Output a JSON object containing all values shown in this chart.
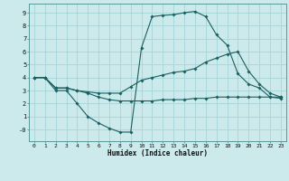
{
  "xlabel": "Humidex (Indice chaleur)",
  "background_color": "#cce9eb",
  "grid_color": "#a8d5d8",
  "line_color": "#1a6060",
  "xlim": [
    -0.5,
    23.5
  ],
  "ylim": [
    -0.9,
    9.7
  ],
  "xticks": [
    0,
    1,
    2,
    3,
    4,
    5,
    6,
    7,
    8,
    9,
    10,
    11,
    12,
    13,
    14,
    15,
    16,
    17,
    18,
    19,
    20,
    21,
    22,
    23
  ],
  "yticks": [
    0,
    1,
    2,
    3,
    4,
    5,
    6,
    7,
    8,
    9
  ],
  "ytick_labels": [
    "-0",
    "1",
    "2",
    "3",
    "4",
    "5",
    "6",
    "7",
    "8",
    "9"
  ],
  "line1_x": [
    0,
    1,
    2,
    3,
    4,
    5,
    6,
    7,
    8,
    9,
    10,
    11,
    12,
    13,
    14,
    15,
    16,
    17,
    18,
    19,
    20,
    21,
    22,
    23
  ],
  "line1_y": [
    4.0,
    4.0,
    3.0,
    3.0,
    2.0,
    1.0,
    0.5,
    0.1,
    -0.2,
    -0.2,
    6.3,
    8.7,
    8.8,
    8.85,
    9.0,
    9.1,
    8.7,
    7.3,
    6.5,
    4.3,
    3.5,
    3.2,
    2.5,
    2.4
  ],
  "line2_x": [
    0,
    1,
    2,
    3,
    4,
    5,
    6,
    7,
    8,
    9,
    10,
    11,
    12,
    13,
    14,
    15,
    16,
    17,
    18,
    19,
    20,
    21,
    22,
    23
  ],
  "line2_y": [
    4.0,
    4.0,
    3.2,
    3.2,
    3.0,
    2.9,
    2.8,
    2.8,
    2.8,
    3.3,
    3.8,
    4.0,
    4.2,
    4.4,
    4.5,
    4.7,
    5.2,
    5.5,
    5.8,
    6.0,
    4.5,
    3.5,
    2.8,
    2.5
  ],
  "line3_x": [
    0,
    1,
    2,
    3,
    4,
    5,
    6,
    7,
    8,
    9,
    10,
    11,
    12,
    13,
    14,
    15,
    16,
    17,
    18,
    19,
    20,
    21,
    22,
    23
  ],
  "line3_y": [
    4.0,
    4.0,
    3.2,
    3.2,
    3.0,
    2.8,
    2.5,
    2.3,
    2.2,
    2.2,
    2.2,
    2.2,
    2.3,
    2.3,
    2.3,
    2.4,
    2.4,
    2.5,
    2.5,
    2.5,
    2.5,
    2.5,
    2.5,
    2.5
  ]
}
